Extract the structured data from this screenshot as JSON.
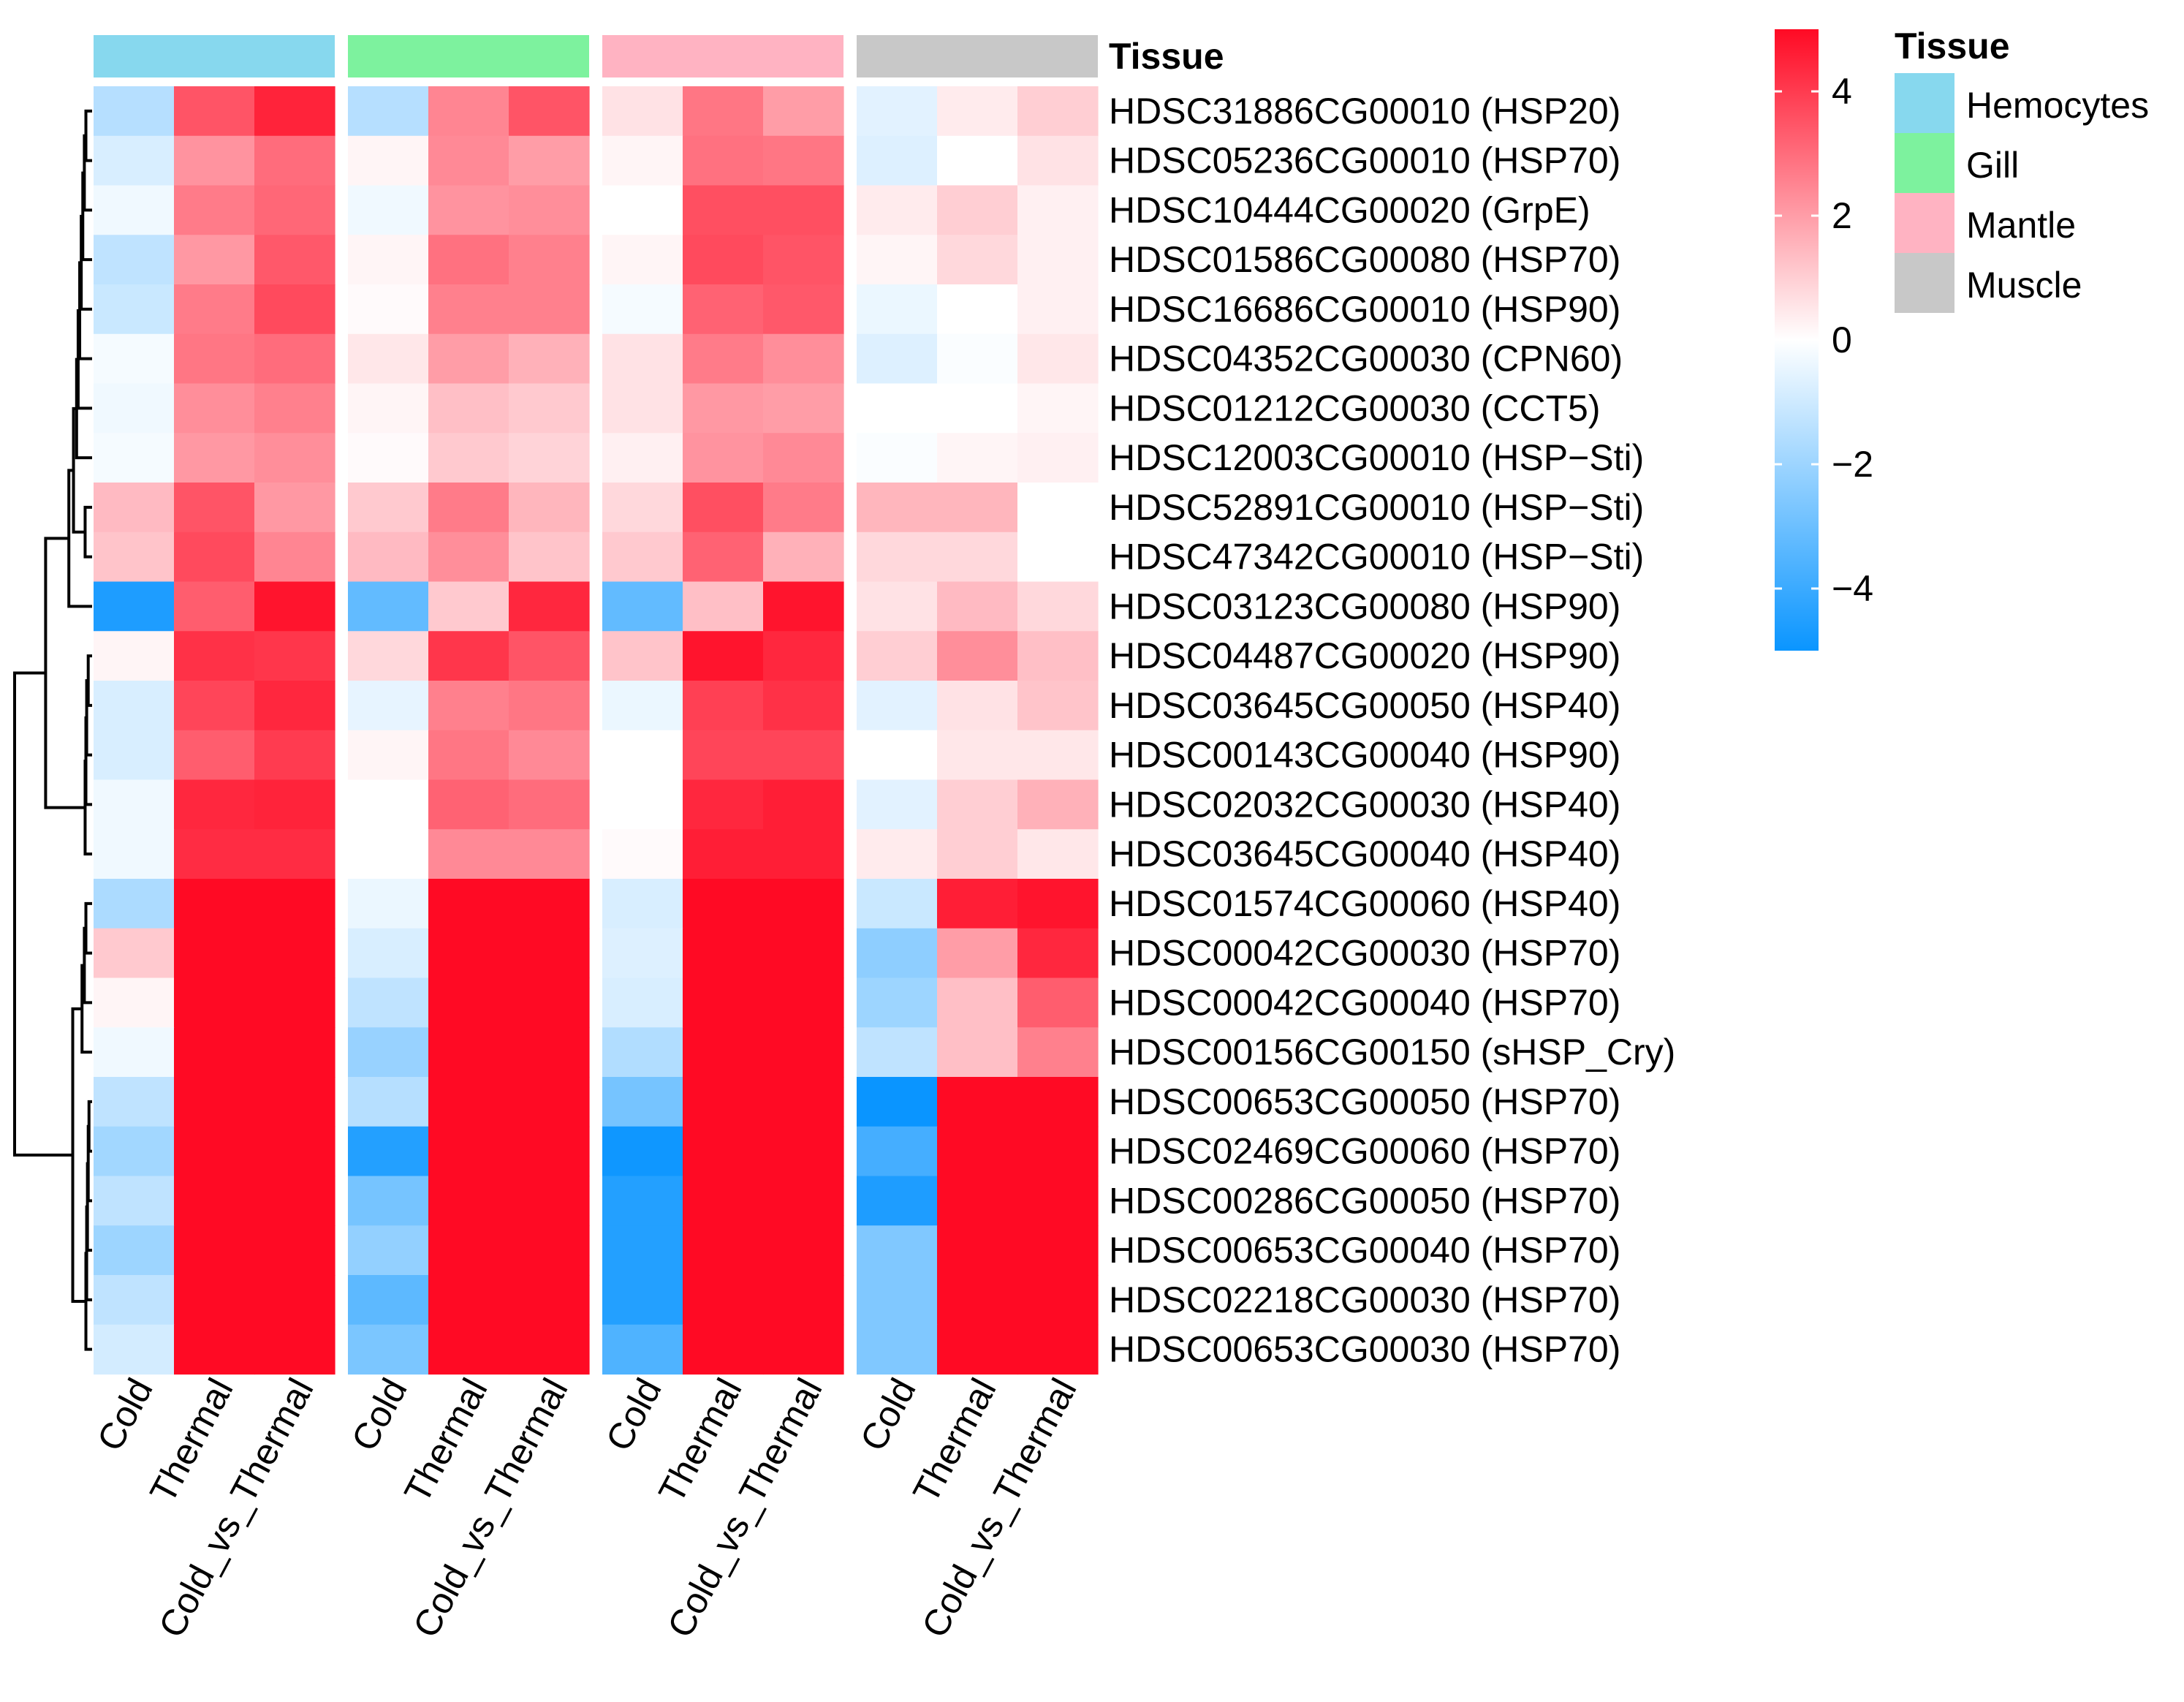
{
  "chart_data": {
    "type": "heatmap",
    "title": "",
    "annotation_label": "Tissue",
    "tissues": [
      {
        "name": "Hemocytes",
        "color": "#87d8ee"
      },
      {
        "name": "Gill",
        "color": "#7df29e"
      },
      {
        "name": "Mantle",
        "color": "#ffb3c2"
      },
      {
        "name": "Muscle",
        "color": "#c8c8c8"
      }
    ],
    "conditions": [
      "Cold",
      "Thermal",
      "Cold_vs_Thermal"
    ],
    "columns": [
      "Cold",
      "Thermal",
      "Cold_vs_Thermal",
      "Cold",
      "Thermal",
      "Cold_vs_Thermal",
      "Cold",
      "Thermal",
      "Cold_vs_Thermal",
      "Cold",
      "Thermal",
      "Cold_vs_Thermal"
    ],
    "rows": [
      "HDSC31886CG00010 (HSP20)",
      "HDSC05236CG00010 (HSP70)",
      "HDSC10444CG00020 (GrpE)",
      "HDSC01586CG00080 (HSP70)",
      "HDSC16686CG00010 (HSP90)",
      "HDSC04352CG00030 (CPN60)",
      "HDSC01212CG00030 (CCT5)",
      "HDSC12003CG00010 (HSP−Sti)",
      "HDSC52891CG00010 (HSP−Sti)",
      "HDSC47342CG00010 (HSP−Sti)",
      "HDSC03123CG00080 (HSP90)",
      "HDSC04487CG00020 (HSP90)",
      "HDSC03645CG00050 (HSP40)",
      "HDSC00143CG00040 (HSP90)",
      "HDSC02032CG00030 (HSP40)",
      "HDSC03645CG00040 (HSP40)",
      "HDSC01574CG00060 (HSP40)",
      "HDSC00042CG00030 (HSP70)",
      "HDSC00042CG00040 (HSP70)",
      "HDSC00156CG00150 (sHSP_Cry)",
      "HDSC00653CG00050 (HSP70)",
      "HDSC02469CG00060 (HSP70)",
      "HDSC00286CG00050 (HSP70)",
      "HDSC00653CG00040 (HSP70)",
      "HDSC02218CG00030 (HSP70)",
      "HDSC00653CG00030 (HSP70)"
    ],
    "values": [
      [
        -1.5,
        3.5,
        4.5,
        -1.5,
        2.5,
        3.5,
        0.6,
        2.8,
        2.0,
        -0.6,
        0.4,
        1.0
      ],
      [
        -0.8,
        2.2,
        3.0,
        0.2,
        2.4,
        2.0,
        0.2,
        2.9,
        2.8,
        -0.7,
        0.0,
        0.6
      ],
      [
        -0.3,
        2.7,
        3.1,
        -0.3,
        2.2,
        2.3,
        0.0,
        3.6,
        3.6,
        0.4,
        1.0,
        0.3
      ],
      [
        -1.3,
        2.1,
        3.4,
        0.2,
        2.9,
        2.6,
        0.2,
        3.7,
        3.5,
        0.2,
        0.8,
        0.3
      ],
      [
        -1.1,
        2.7,
        3.7,
        0.1,
        2.6,
        2.6,
        -0.2,
        3.2,
        3.4,
        -0.4,
        0.0,
        0.3
      ],
      [
        -0.2,
        2.8,
        3.0,
        0.5,
        2.0,
        1.6,
        0.6,
        2.7,
        2.3,
        -0.7,
        -0.1,
        0.5
      ],
      [
        -0.3,
        2.3,
        2.6,
        0.2,
        1.3,
        1.1,
        0.6,
        2.1,
        2.0,
        0.0,
        0.0,
        0.2
      ],
      [
        -0.2,
        2.1,
        2.3,
        0.1,
        1.1,
        0.9,
        0.3,
        2.2,
        2.4,
        -0.1,
        0.2,
        0.3
      ],
      [
        1.4,
        3.5,
        2.1,
        1.1,
        2.7,
        1.5,
        0.8,
        3.6,
        2.7,
        1.5,
        1.5,
        0.0
      ],
      [
        1.2,
        3.7,
        2.5,
        1.4,
        2.3,
        1.2,
        1.1,
        3.2,
        1.6,
        0.8,
        0.8,
        0.0
      ],
      [
        -4.6,
        3.3,
        4.8,
        -3.2,
        1.1,
        4.4,
        -3.2,
        1.3,
        4.8,
        0.6,
        1.4,
        0.8
      ],
      [
        0.2,
        4.2,
        4.1,
        0.8,
        4.1,
        3.5,
        1.2,
        4.8,
        4.4,
        1.0,
        2.3,
        1.3
      ],
      [
        -0.8,
        3.8,
        4.4,
        -0.5,
        2.6,
        2.8,
        -0.4,
        3.9,
        4.2,
        -0.6,
        0.6,
        1.2
      ],
      [
        -0.8,
        3.3,
        4.0,
        0.2,
        2.8,
        2.4,
        0.0,
        3.8,
        3.8,
        0.0,
        0.5,
        0.5
      ],
      [
        -0.3,
        4.4,
        4.5,
        0.0,
        3.2,
        3.0,
        0.0,
        4.4,
        4.6,
        -0.6,
        1.0,
        1.6
      ],
      [
        -0.3,
        4.3,
        4.3,
        0.0,
        2.4,
        2.4,
        0.1,
        4.6,
        4.6,
        0.4,
        1.0,
        0.5
      ],
      [
        -1.7,
        5.0,
        5.0,
        -0.4,
        5.0,
        5.0,
        -0.8,
        5.0,
        5.0,
        -1.1,
        4.6,
        4.8
      ],
      [
        1.1,
        5.0,
        5.0,
        -0.8,
        5.0,
        5.0,
        -0.7,
        5.0,
        5.0,
        -2.3,
        2.0,
        4.4
      ],
      [
        0.2,
        5.0,
        5.0,
        -1.3,
        5.0,
        5.0,
        -0.8,
        5.0,
        5.0,
        -2.0,
        1.3,
        3.3
      ],
      [
        -0.3,
        5.0,
        5.0,
        -2.1,
        5.0,
        5.0,
        -1.6,
        5.0,
        5.0,
        -1.3,
        1.3,
        2.6
      ],
      [
        -1.3,
        5.0,
        5.0,
        -1.5,
        5.0,
        5.0,
        -2.8,
        5.0,
        5.0,
        -5.0,
        5.0,
        5.0
      ],
      [
        -1.9,
        5.0,
        5.0,
        -4.5,
        5.0,
        5.0,
        -4.9,
        5.0,
        5.0,
        -3.8,
        5.0,
        5.0
      ],
      [
        -1.3,
        5.0,
        5.0,
        -2.8,
        5.0,
        5.0,
        -4.5,
        5.0,
        5.0,
        -4.6,
        5.0,
        5.0
      ],
      [
        -2.0,
        5.0,
        5.0,
        -2.2,
        5.0,
        5.0,
        -4.5,
        5.0,
        5.0,
        -2.6,
        5.0,
        5.0
      ],
      [
        -1.3,
        5.0,
        5.0,
        -3.3,
        5.0,
        5.0,
        -4.5,
        5.0,
        5.0,
        -2.6,
        5.0,
        5.0
      ],
      [
        -0.9,
        5.0,
        5.0,
        -2.7,
        5.0,
        5.0,
        -3.6,
        5.0,
        5.0,
        -2.6,
        5.0,
        5.0
      ]
    ],
    "color_scale": {
      "low": "#0a95ff",
      "mid": "#ffffff",
      "high": "#ff0a24",
      "range": [
        -5,
        5
      ]
    },
    "color_legend": {
      "ticks": [
        4,
        2,
        0,
        -2,
        -4
      ],
      "tick_labels": [
        "4",
        "2",
        "0",
        "−2",
        "−4"
      ]
    },
    "tissue_legend_title": "Tissue",
    "dendrogram": "rows"
  }
}
